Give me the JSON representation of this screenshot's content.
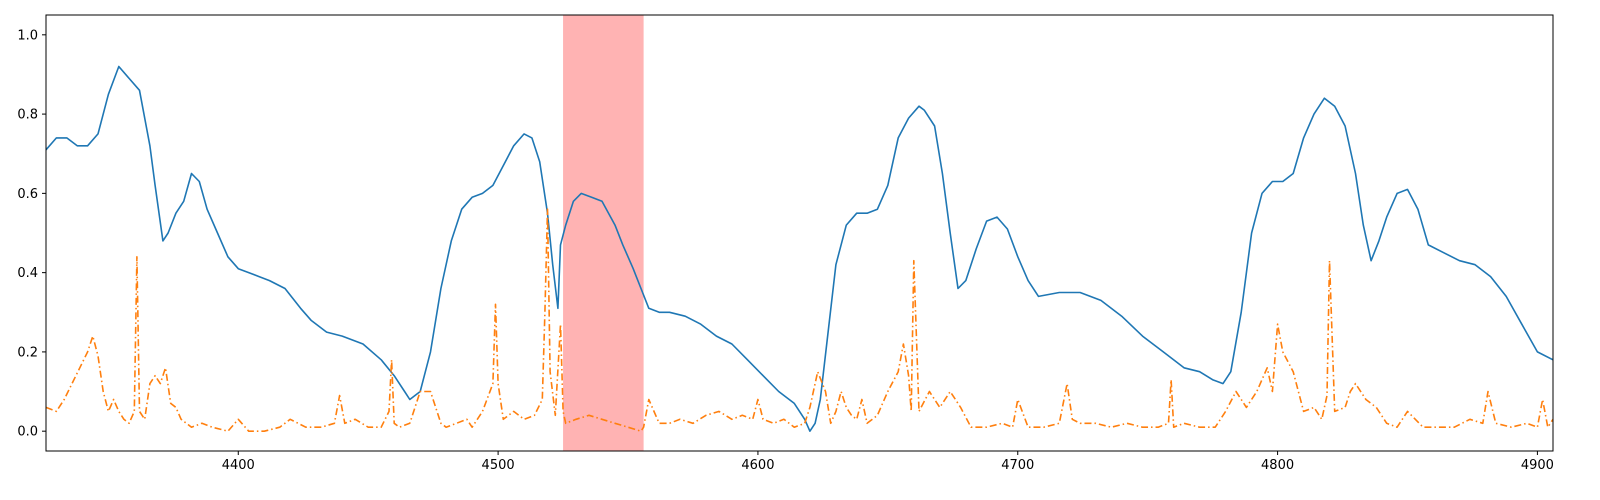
{
  "chart_data": {
    "type": "line",
    "title": "",
    "xlabel": "",
    "ylabel": "",
    "xlim": [
      4326,
      4906
    ],
    "ylim": [
      -0.05,
      1.05
    ],
    "x_ticks": [
      4400,
      4500,
      4600,
      4700,
      4800,
      4900
    ],
    "x_tick_labels": [
      "4400",
      "4500",
      "4600",
      "4700",
      "4800",
      "4900"
    ],
    "y_ticks": [
      0.0,
      0.2,
      0.4,
      0.6,
      0.8,
      1.0
    ],
    "y_tick_labels": [
      "0.0",
      "0.2",
      "0.4",
      "0.6",
      "0.8",
      "1.0"
    ],
    "grid": false,
    "legend": "none",
    "highlight_span": {
      "x_start": 4525,
      "x_end": 4556,
      "color": "#ff9999"
    },
    "series": [
      {
        "color": "#1f77b4",
        "linestyle": "solid",
        "x": [
          4326,
          4330,
          4334,
          4338,
          4342,
          4346,
          4350,
          4354,
          4358,
          4362,
          4366,
          4368,
          4371,
          4373,
          4376,
          4379,
          4382,
          4385,
          4388,
          4392,
          4396,
          4400,
          4404,
          4408,
          4412,
          4418,
          4424,
          4428,
          4434,
          4440,
          4448,
          4455,
          4460,
          4464,
          4466,
          4470,
          4474,
          4478,
          4482,
          4486,
          4490,
          4494,
          4498,
          4502,
          4506,
          4510,
          4513,
          4516,
          4519,
          4521,
          4523,
          4524,
          4526,
          4529,
          4532,
          4536,
          4540,
          4545,
          4548,
          4552,
          4555,
          4558,
          4562,
          4566,
          4572,
          4578,
          4584,
          4590,
          4596,
          4602,
          4608,
          4614,
          4618,
          4620,
          4622,
          4624,
          4627,
          4630,
          4634,
          4638,
          4642,
          4646,
          4650,
          4654,
          4658,
          4662,
          4664,
          4668,
          4671,
          4674,
          4677,
          4680,
          4684,
          4688,
          4692,
          4696,
          4700,
          4704,
          4708,
          4716,
          4724,
          4732,
          4740,
          4748,
          4756,
          4764,
          4770,
          4775,
          4779,
          4782,
          4786,
          4790,
          4794,
          4798,
          4802,
          4806,
          4810,
          4814,
          4818,
          4822,
          4826,
          4830,
          4833,
          4836,
          4839,
          4842,
          4846,
          4850,
          4854,
          4858,
          4864,
          4870,
          4876,
          4882,
          4888,
          4894,
          4900,
          4906
        ],
        "y": [
          0.71,
          0.74,
          0.74,
          0.72,
          0.72,
          0.75,
          0.85,
          0.92,
          0.89,
          0.86,
          0.72,
          0.62,
          0.48,
          0.5,
          0.55,
          0.58,
          0.65,
          0.63,
          0.56,
          0.5,
          0.44,
          0.41,
          0.4,
          0.39,
          0.38,
          0.36,
          0.31,
          0.28,
          0.25,
          0.24,
          0.22,
          0.18,
          0.14,
          0.1,
          0.08,
          0.1,
          0.2,
          0.36,
          0.48,
          0.56,
          0.59,
          0.6,
          0.62,
          0.67,
          0.72,
          0.75,
          0.74,
          0.68,
          0.55,
          0.42,
          0.31,
          0.47,
          0.52,
          0.58,
          0.6,
          0.59,
          0.58,
          0.52,
          0.47,
          0.41,
          0.36,
          0.31,
          0.3,
          0.3,
          0.29,
          0.27,
          0.24,
          0.22,
          0.18,
          0.14,
          0.1,
          0.07,
          0.03,
          0.0,
          0.02,
          0.08,
          0.25,
          0.42,
          0.52,
          0.55,
          0.55,
          0.56,
          0.62,
          0.74,
          0.79,
          0.82,
          0.81,
          0.77,
          0.65,
          0.5,
          0.36,
          0.38,
          0.46,
          0.53,
          0.54,
          0.51,
          0.44,
          0.38,
          0.34,
          0.35,
          0.35,
          0.33,
          0.29,
          0.24,
          0.2,
          0.16,
          0.15,
          0.13,
          0.12,
          0.15,
          0.3,
          0.5,
          0.6,
          0.63,
          0.63,
          0.65,
          0.74,
          0.8,
          0.84,
          0.82,
          0.77,
          0.65,
          0.52,
          0.43,
          0.48,
          0.54,
          0.6,
          0.61,
          0.56,
          0.47,
          0.45,
          0.43,
          0.42,
          0.39,
          0.34,
          0.27,
          0.2,
          0.18
        ]
      },
      {
        "color": "#ff7f0e",
        "linestyle": "dashdot",
        "x": [
          4326,
          4330,
          4333,
          4336,
          4339,
          4342,
          4344,
          4346,
          4348,
          4350,
          4352,
          4354,
          4356,
          4358,
          4360,
          4361,
          4362,
          4364,
          4366,
          4368,
          4370,
          4372,
          4374,
          4376,
          4378,
          4382,
          4386,
          4390,
          4396,
          4400,
          4404,
          4410,
          4416,
          4420,
          4426,
          4432,
          4437,
          4439,
          4441,
          4445,
          4450,
          4455,
          4458,
          4459,
          4460,
          4462,
          4466,
          4470,
          4474,
          4478,
          4480,
          4484,
          4488,
          4490,
          4494,
          4498,
          4499,
          4500,
          4502,
          4506,
          4510,
          4514,
          4517,
          4518,
          4519,
          4520,
          4522,
          4524,
          4525,
          4526,
          4530,
          4535,
          4540,
          4545,
          4550,
          4555,
          4556,
          4558,
          4562,
          4566,
          4570,
          4575,
          4580,
          4585,
          4590,
          4594,
          4598,
          4600,
          4602,
          4606,
          4610,
          4614,
          4618,
          4620,
          4623,
          4626,
          4628,
          4630,
          4632,
          4634,
          4636,
          4638,
          4640,
          4642,
          4646,
          4650,
          4654,
          4656,
          4658,
          4659,
          4660,
          4662,
          4666,
          4670,
          4674,
          4678,
          4682,
          4688,
          4694,
          4698,
          4700,
          4704,
          4710,
          4716,
          4719,
          4721,
          4724,
          4730,
          4736,
          4742,
          4748,
          4754,
          4758,
          4759,
          4760,
          4764,
          4770,
          4776,
          4780,
          4784,
          4788,
          4792,
          4796,
          4798,
          4800,
          4802,
          4806,
          4810,
          4814,
          4817,
          4819,
          4820,
          4822,
          4826,
          4828,
          4830,
          4834,
          4838,
          4842,
          4846,
          4850,
          4856,
          4862,
          4868,
          4874,
          4879,
          4881,
          4884,
          4890,
          4896,
          4900,
          4902,
          4904,
          4906
        ],
        "y": [
          0.06,
          0.05,
          0.08,
          0.12,
          0.16,
          0.2,
          0.24,
          0.19,
          0.1,
          0.05,
          0.08,
          0.05,
          0.03,
          0.02,
          0.05,
          0.44,
          0.05,
          0.03,
          0.12,
          0.14,
          0.12,
          0.16,
          0.07,
          0.06,
          0.03,
          0.01,
          0.02,
          0.01,
          0.0,
          0.03,
          0.0,
          0.0,
          0.01,
          0.03,
          0.01,
          0.01,
          0.02,
          0.09,
          0.02,
          0.03,
          0.01,
          0.01,
          0.05,
          0.18,
          0.02,
          0.01,
          0.02,
          0.1,
          0.1,
          0.02,
          0.01,
          0.02,
          0.03,
          0.01,
          0.05,
          0.12,
          0.32,
          0.12,
          0.03,
          0.05,
          0.03,
          0.04,
          0.08,
          0.3,
          0.56,
          0.15,
          0.04,
          0.27,
          0.05,
          0.02,
          0.03,
          0.04,
          0.03,
          0.02,
          0.01,
          0.0,
          0.01,
          0.08,
          0.02,
          0.02,
          0.03,
          0.02,
          0.04,
          0.05,
          0.03,
          0.04,
          0.03,
          0.08,
          0.03,
          0.02,
          0.03,
          0.01,
          0.02,
          0.06,
          0.15,
          0.1,
          0.02,
          0.05,
          0.1,
          0.06,
          0.04,
          0.03,
          0.08,
          0.02,
          0.04,
          0.1,
          0.15,
          0.22,
          0.14,
          0.05,
          0.43,
          0.05,
          0.1,
          0.06,
          0.1,
          0.06,
          0.01,
          0.01,
          0.02,
          0.01,
          0.08,
          0.01,
          0.01,
          0.02,
          0.12,
          0.03,
          0.02,
          0.02,
          0.01,
          0.02,
          0.01,
          0.01,
          0.02,
          0.13,
          0.01,
          0.02,
          0.01,
          0.01,
          0.05,
          0.1,
          0.06,
          0.1,
          0.16,
          0.1,
          0.27,
          0.2,
          0.15,
          0.05,
          0.06,
          0.03,
          0.09,
          0.43,
          0.05,
          0.06,
          0.1,
          0.12,
          0.08,
          0.06,
          0.02,
          0.01,
          0.05,
          0.01,
          0.01,
          0.01,
          0.03,
          0.02,
          0.1,
          0.02,
          0.01,
          0.02,
          0.01,
          0.08,
          0.01,
          0.03
        ]
      }
    ]
  }
}
